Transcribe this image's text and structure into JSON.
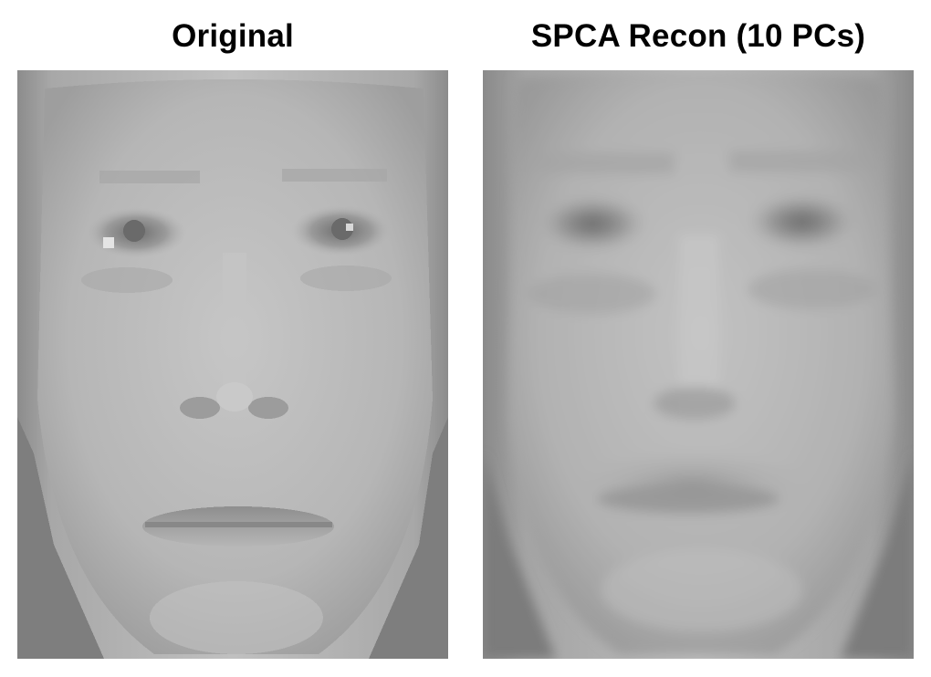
{
  "panels": [
    {
      "title": "Original"
    },
    {
      "title": "SPCA Recon (10 PCs)"
    }
  ],
  "colors": {
    "background": "#ffffff",
    "title_text": "#000000",
    "skin_original": "#b9b9b9",
    "skin_recon": "#b4b4b4"
  }
}
